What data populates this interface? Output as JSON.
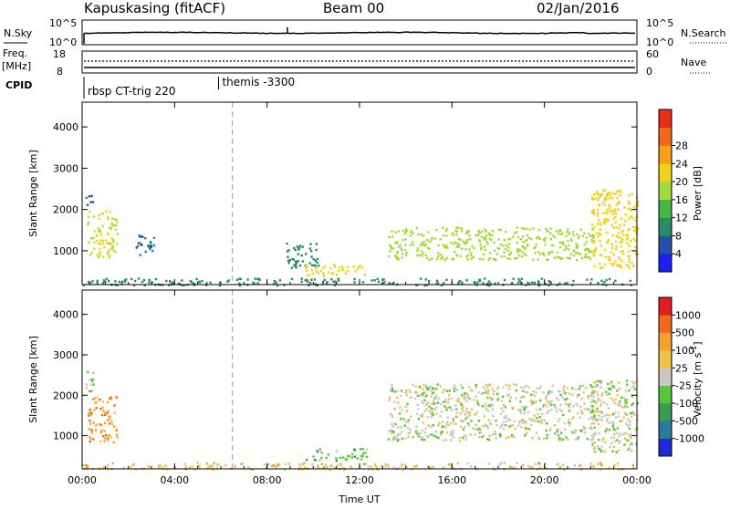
{
  "header": {
    "station": "Kapuskasing (fitACF)",
    "beam": "Beam 00",
    "date": "02/Jan/2016"
  },
  "nsky_panel": {
    "left_label": "N.Sky",
    "left_ticks": [
      "10^5",
      "10^0"
    ],
    "right_ticks": [
      "10^5",
      "10^0"
    ],
    "right_label": "N.Search"
  },
  "freq_panel": {
    "left_label_1": "Freq.",
    "left_label_2": "[MHz]",
    "left_ticks": [
      "18",
      "8"
    ],
    "right_ticks": [
      "60",
      "0"
    ],
    "right_label": "Nave"
  },
  "cpid_panel": {
    "label": "CPID",
    "segments": [
      {
        "name": "rbsp CT-trig 220",
        "start_hour": 0.0
      },
      {
        "name": "themis -3300",
        "start_hour": 5.9
      }
    ]
  },
  "chart_data": [
    {
      "type": "heatmap",
      "name": "power",
      "ylabel": "Slant Range [km]",
      "xlabel": "",
      "ylim": [
        180,
        4600
      ],
      "xlim": [
        0,
        24
      ],
      "y_ticks": [
        "1000",
        "2000",
        "3000",
        "4000"
      ],
      "colorbar": {
        "label": "Power [dB]",
        "ticks": [
          "4",
          "8",
          "12",
          "16",
          "20",
          "24",
          "28"
        ],
        "range": [
          0,
          32
        ],
        "colors": [
          "#1e1ef0",
          "#2750a8",
          "#2b8a6a",
          "#49b547",
          "#a6d93a",
          "#f0d21a",
          "#f5a11a",
          "#ef6a1a",
          "#e53018"
        ]
      },
      "regions": [
        {
          "t0": 0.2,
          "t1": 1.5,
          "r0": 850,
          "r1": 2000,
          "level": 18
        },
        {
          "t0": 0.1,
          "t1": 0.5,
          "r0": 2000,
          "r1": 2600,
          "level": 6
        },
        {
          "t0": 2.3,
          "t1": 3.1,
          "r0": 900,
          "r1": 1400,
          "level": 6
        },
        {
          "t0": 8.8,
          "t1": 10.2,
          "r0": 600,
          "r1": 1200,
          "level": 7
        },
        {
          "t0": 9.6,
          "t1": 12.3,
          "r0": 400,
          "r1": 700,
          "level": 20
        },
        {
          "t0": 13.2,
          "t1": 22.2,
          "r0": 800,
          "r1": 1600,
          "level": 16
        },
        {
          "t0": 22.0,
          "t1": 24.0,
          "r0": 600,
          "r1": 2500,
          "level": 20
        },
        {
          "t0": 0.0,
          "t1": 24.0,
          "r0": 180,
          "r1": 350,
          "level": 8
        }
      ]
    },
    {
      "type": "heatmap",
      "name": "velocity",
      "ylabel": "Slant Range [km]",
      "xlabel": "Time UT",
      "ylim": [
        180,
        4600
      ],
      "xlim": [
        0,
        24
      ],
      "y_ticks": [
        "1000",
        "2000",
        "3000",
        "4000"
      ],
      "x_ticks": [
        "00:00",
        "04:00",
        "08:00",
        "12:00",
        "16:00",
        "20:00",
        "00:00"
      ],
      "colorbar": {
        "label": "Velocity [m s^-1]",
        "ticks": [
          "1000",
          "500",
          "100",
          "25",
          "-25",
          "-100",
          "-500",
          "-1000"
        ],
        "colors": [
          "#1e2ad6",
          "#2a7a9a",
          "#3a9a55",
          "#5cc43a",
          "#c8c8c0",
          "#f0c04a",
          "#f5a02a",
          "#ef6a1a",
          "#e02020"
        ]
      },
      "regions": [
        {
          "t0": 0.2,
          "t1": 1.5,
          "r0": 850,
          "r1": 2000,
          "level": 6
        },
        {
          "t0": 0.1,
          "t1": 0.5,
          "r0": 2000,
          "r1": 2600,
          "level": 4
        },
        {
          "t0": 9.6,
          "t1": 12.3,
          "r0": 400,
          "r1": 700,
          "level": 3
        },
        {
          "t0": 13.2,
          "t1": 22.2,
          "r0": 900,
          "r1": 2300,
          "level": 4
        },
        {
          "t0": 22.0,
          "t1": 24.0,
          "r0": 600,
          "r1": 2400,
          "level": 4
        },
        {
          "t0": 0.0,
          "t1": 24.0,
          "r0": 180,
          "r1": 350,
          "level": 5
        }
      ]
    }
  ],
  "cpid_marker_hour": 6.5
}
